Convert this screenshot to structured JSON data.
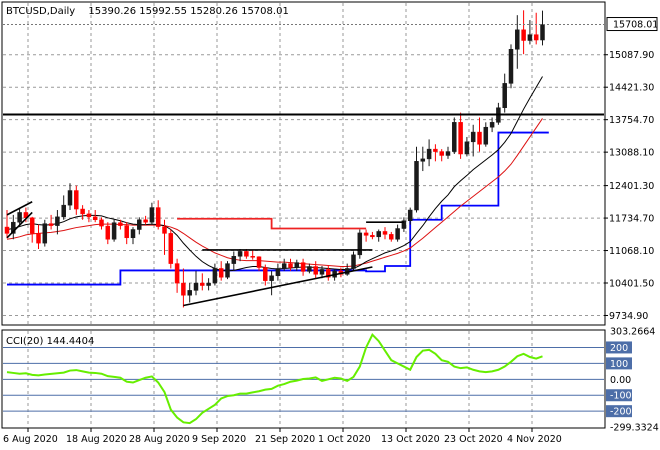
{
  "header": {
    "symbol": "BTCUSD,Daily",
    "ohlc": "15390.26 15992.55 15280.26 15708.01"
  },
  "indicator": {
    "label": "CCI(20) 144.4404",
    "levels": [
      "303.2664",
      "200",
      "100",
      "0.00",
      "-100",
      "-200",
      "-299.3324"
    ]
  },
  "colors": {
    "background": "#ffffff",
    "grid": "#9a9a9a",
    "candle_up": "#1a1a1a",
    "candle_down": "#ff0000",
    "fast_ma": "#000000",
    "slow_ma": "#dd1111",
    "support_line": "#0000ff",
    "resistance_line": "#ee2222",
    "cci_line": "#66ee00",
    "cci_level": "#4d6ea8",
    "price_badge": "#ffffff"
  },
  "chart_data": {
    "type": "candlestick",
    "price_ticks": [
      9734.9,
      10401.5,
      11068.1,
      11734.7,
      12401.3,
      13088.1,
      13754.7,
      14421.3,
      15087.9
    ],
    "current_price": "15708.01",
    "ylim": [
      9560,
      16150
    ],
    "x_labels": [
      "6 Aug 2020",
      "18 Aug 2020",
      "28 Aug 2020",
      "9 Sep 2020",
      "21 Sep 2020",
      "1 Oct 2020",
      "13 Oct 2020",
      "23 Oct 2020",
      "4 Nov 2020"
    ],
    "candles": [
      {
        "o": 11550,
        "h": 11900,
        "l": 11320,
        "c": 11420
      },
      {
        "o": 11420,
        "h": 11800,
        "l": 11300,
        "c": 11650
      },
      {
        "o": 11650,
        "h": 11950,
        "l": 11550,
        "c": 11850
      },
      {
        "o": 11850,
        "h": 11950,
        "l": 11650,
        "c": 11740
      },
      {
        "o": 11740,
        "h": 11760,
        "l": 11230,
        "c": 11420
      },
      {
        "o": 11420,
        "h": 11600,
        "l": 11100,
        "c": 11220
      },
      {
        "o": 11220,
        "h": 11700,
        "l": 11150,
        "c": 11620
      },
      {
        "o": 11620,
        "h": 11800,
        "l": 11500,
        "c": 11580
      },
      {
        "o": 11580,
        "h": 11900,
        "l": 11400,
        "c": 11760
      },
      {
        "o": 11760,
        "h": 12200,
        "l": 11700,
        "c": 12000
      },
      {
        "o": 12000,
        "h": 12450,
        "l": 11900,
        "c": 12300
      },
      {
        "o": 12300,
        "h": 12400,
        "l": 11800,
        "c": 11920
      },
      {
        "o": 11920,
        "h": 12000,
        "l": 11700,
        "c": 11820
      },
      {
        "o": 11820,
        "h": 11900,
        "l": 11650,
        "c": 11760
      },
      {
        "o": 11760,
        "h": 11900,
        "l": 11650,
        "c": 11700
      },
      {
        "o": 11700,
        "h": 11750,
        "l": 11500,
        "c": 11570
      },
      {
        "o": 11570,
        "h": 11650,
        "l": 11200,
        "c": 11300
      },
      {
        "o": 11300,
        "h": 11700,
        "l": 11250,
        "c": 11640
      },
      {
        "o": 11640,
        "h": 11700,
        "l": 11500,
        "c": 11580
      },
      {
        "o": 11580,
        "h": 11650,
        "l": 11200,
        "c": 11330
      },
      {
        "o": 11330,
        "h": 11550,
        "l": 11200,
        "c": 11500
      },
      {
        "o": 11500,
        "h": 11750,
        "l": 11400,
        "c": 11700
      },
      {
        "o": 11700,
        "h": 11780,
        "l": 11600,
        "c": 11650
      },
      {
        "o": 11650,
        "h": 12050,
        "l": 11620,
        "c": 11950
      },
      {
        "o": 11950,
        "h": 12100,
        "l": 11500,
        "c": 11560
      },
      {
        "o": 11560,
        "h": 11700,
        "l": 10980,
        "c": 11420
      },
      {
        "o": 11420,
        "h": 11500,
        "l": 10700,
        "c": 10800
      },
      {
        "o": 10800,
        "h": 10900,
        "l": 10200,
        "c": 10400
      },
      {
        "o": 10400,
        "h": 10700,
        "l": 9900,
        "c": 10150
      },
      {
        "o": 10150,
        "h": 10400,
        "l": 10000,
        "c": 10250
      },
      {
        "o": 10250,
        "h": 10650,
        "l": 10150,
        "c": 10400
      },
      {
        "o": 10400,
        "h": 10600,
        "l": 10250,
        "c": 10350
      },
      {
        "o": 10350,
        "h": 10500,
        "l": 10250,
        "c": 10400
      },
      {
        "o": 10400,
        "h": 10800,
        "l": 10350,
        "c": 10700
      },
      {
        "o": 10700,
        "h": 10850,
        "l": 10450,
        "c": 10520
      },
      {
        "o": 10520,
        "h": 10850,
        "l": 10480,
        "c": 10800
      },
      {
        "o": 10800,
        "h": 11050,
        "l": 10650,
        "c": 10950
      },
      {
        "o": 10950,
        "h": 11100,
        "l": 10850,
        "c": 11050
      },
      {
        "o": 11050,
        "h": 11100,
        "l": 10900,
        "c": 10950
      },
      {
        "o": 10950,
        "h": 11080,
        "l": 10880,
        "c": 10940
      },
      {
        "o": 10940,
        "h": 10950,
        "l": 10650,
        "c": 10720
      },
      {
        "o": 10720,
        "h": 10780,
        "l": 10350,
        "c": 10450
      },
      {
        "o": 10450,
        "h": 10650,
        "l": 10150,
        "c": 10550
      },
      {
        "o": 10550,
        "h": 10800,
        "l": 10450,
        "c": 10700
      },
      {
        "o": 10700,
        "h": 10900,
        "l": 10650,
        "c": 10800
      },
      {
        "o": 10800,
        "h": 10900,
        "l": 10650,
        "c": 10720
      },
      {
        "o": 10720,
        "h": 10880,
        "l": 10650,
        "c": 10820
      },
      {
        "o": 10820,
        "h": 10900,
        "l": 10550,
        "c": 10640
      },
      {
        "o": 10640,
        "h": 10800,
        "l": 10600,
        "c": 10740
      },
      {
        "o": 10740,
        "h": 10850,
        "l": 10500,
        "c": 10580
      },
      {
        "o": 10580,
        "h": 10750,
        "l": 10500,
        "c": 10680
      },
      {
        "o": 10680,
        "h": 10750,
        "l": 10450,
        "c": 10520
      },
      {
        "o": 10520,
        "h": 10700,
        "l": 10450,
        "c": 10650
      },
      {
        "o": 10650,
        "h": 10720,
        "l": 10520,
        "c": 10580
      },
      {
        "o": 10580,
        "h": 10800,
        "l": 10550,
        "c": 10700
      },
      {
        "o": 10700,
        "h": 11050,
        "l": 10650,
        "c": 10980
      },
      {
        "o": 10980,
        "h": 11500,
        "l": 10900,
        "c": 11430
      },
      {
        "o": 11430,
        "h": 11500,
        "l": 11250,
        "c": 11380
      },
      {
        "o": 11380,
        "h": 11450,
        "l": 11300,
        "c": 11350
      },
      {
        "o": 11350,
        "h": 11500,
        "l": 11250,
        "c": 11460
      },
      {
        "o": 11460,
        "h": 11550,
        "l": 11300,
        "c": 11400
      },
      {
        "o": 11400,
        "h": 11450,
        "l": 11250,
        "c": 11300
      },
      {
        "o": 11300,
        "h": 11600,
        "l": 11250,
        "c": 11520
      },
      {
        "o": 11520,
        "h": 11750,
        "l": 11450,
        "c": 11680
      },
      {
        "o": 11680,
        "h": 11950,
        "l": 11600,
        "c": 11900
      },
      {
        "o": 11900,
        "h": 13200,
        "l": 11850,
        "c": 12900
      },
      {
        "o": 12900,
        "h": 13200,
        "l": 12700,
        "c": 12950
      },
      {
        "o": 12950,
        "h": 13350,
        "l": 12800,
        "c": 13150
      },
      {
        "o": 13150,
        "h": 13250,
        "l": 12900,
        "c": 13100
      },
      {
        "o": 13100,
        "h": 13150,
        "l": 12900,
        "c": 13020
      },
      {
        "o": 13020,
        "h": 13200,
        "l": 12950,
        "c": 13100
      },
      {
        "o": 13100,
        "h": 13800,
        "l": 13050,
        "c": 13700
      },
      {
        "o": 13700,
        "h": 13900,
        "l": 12950,
        "c": 13050
      },
      {
        "o": 13050,
        "h": 13400,
        "l": 13000,
        "c": 13300
      },
      {
        "o": 13300,
        "h": 13650,
        "l": 13000,
        "c": 13500
      },
      {
        "o": 13500,
        "h": 13800,
        "l": 13100,
        "c": 13250
      },
      {
        "o": 13250,
        "h": 13700,
        "l": 13200,
        "c": 13600
      },
      {
        "o": 13600,
        "h": 13800,
        "l": 13500,
        "c": 13700
      },
      {
        "o": 13700,
        "h": 14100,
        "l": 13650,
        "c": 14000
      },
      {
        "o": 14000,
        "h": 14700,
        "l": 13900,
        "c": 14500
      },
      {
        "o": 14500,
        "h": 15300,
        "l": 14400,
        "c": 15200
      },
      {
        "o": 15200,
        "h": 15900,
        "l": 14800,
        "c": 15600
      },
      {
        "o": 15600,
        "h": 16000,
        "l": 15100,
        "c": 15380
      },
      {
        "o": 15380,
        "h": 15800,
        "l": 15300,
        "c": 15500
      },
      {
        "o": 15500,
        "h": 15950,
        "l": 15300,
        "c": 15390
      },
      {
        "o": 15390,
        "h": 15992.55,
        "l": 15280.26,
        "c": 15708.01
      }
    ],
    "fast_ma": [
      11500,
      11520,
      11560,
      11600,
      11620,
      11600,
      11590,
      11600,
      11620,
      11660,
      11720,
      11760,
      11780,
      11790,
      11790,
      11780,
      11740,
      11710,
      11680,
      11640,
      11610,
      11600,
      11600,
      11610,
      11600,
      11580,
      11500,
      11380,
      11220,
      11080,
      10950,
      10840,
      10760,
      10700,
      10660,
      10650,
      10660,
      10690,
      10720,
      10740,
      10740,
      10720,
      10700,
      10690,
      10700,
      10710,
      10720,
      10730,
      10730,
      10720,
      10710,
      10700,
      10690,
      10680,
      10680,
      10700,
      10760,
      10840,
      10900,
      10960,
      11020,
      11060,
      11110,
      11170,
      11250,
      11420,
      11580,
      11760,
      11930,
      12080,
      12210,
      12380,
      12500,
      12610,
      12730,
      12830,
      12930,
      13030,
      13140,
      13290,
      13470,
      13720,
      13970,
      14200,
      14420,
      14640
    ],
    "slow_ma": [
      11300,
      11320,
      11350,
      11390,
      11410,
      11420,
      11430,
      11440,
      11460,
      11480,
      11510,
      11540,
      11560,
      11580,
      11600,
      11610,
      11610,
      11610,
      11600,
      11600,
      11590,
      11590,
      11590,
      11590,
      11590,
      11580,
      11550,
      11500,
      11420,
      11330,
      11240,
      11160,
      11090,
      11020,
      10970,
      10920,
      10890,
      10870,
      10860,
      10860,
      10860,
      10850,
      10840,
      10830,
      10830,
      10820,
      10810,
      10800,
      10790,
      10780,
      10770,
      10760,
      10750,
      10740,
      10740,
      10750,
      10780,
      10810,
      10850,
      10890,
      10930,
      10970,
      11010,
      11060,
      11120,
      11220,
      11320,
      11430,
      11540,
      11650,
      11760,
      11870,
      11980,
      12080,
      12180,
      12280,
      12380,
      12480,
      12580,
      12700,
      12840,
      13020,
      13210,
      13400,
      13590,
      13780
    ],
    "support_steps": [
      {
        "from": 0,
        "to": 18,
        "price": 10370
      },
      {
        "from": 18,
        "to": 57,
        "price": 10660
      },
      {
        "from": 57,
        "to": 60,
        "price": 10640
      },
      {
        "from": 60,
        "to": 64,
        "price": 10750
      },
      {
        "from": 64,
        "to": 66,
        "price": 11700
      },
      {
        "from": 66,
        "to": 69,
        "price": 11700
      },
      {
        "from": 69,
        "to": 78,
        "price": 11990
      },
      {
        "from": 78,
        "to": 81,
        "price": 13490
      },
      {
        "from": 81,
        "to": 86,
        "price": 13490
      }
    ],
    "resistance_steps": [
      {
        "from": 27,
        "to": 42,
        "price": 11720
      },
      {
        "from": 42,
        "to": 57,
        "price": 11520
      }
    ],
    "horizontal_lines": [
      {
        "price": 13860,
        "color": "#000000",
        "width": 2
      }
    ],
    "trend_lines": [
      {
        "x1": 0,
        "y1": 11330,
        "x2": 4,
        "y2": 11850
      },
      {
        "x1": 0,
        "y1": 11800,
        "x2": 4,
        "y2": 12070
      },
      {
        "x1": 28,
        "y1": 9940,
        "x2": 58,
        "y2": 10730
      },
      {
        "x1": 31,
        "y1": 11080,
        "x2": 58,
        "y2": 11080
      },
      {
        "x1": 57,
        "y1": 11650,
        "x2": 63,
        "y2": 11650
      }
    ],
    "cci": [
      45,
      40,
      35,
      38,
      28,
      25,
      30,
      34,
      38,
      42,
      55,
      58,
      50,
      42,
      40,
      35,
      20,
      15,
      10,
      -15,
      -20,
      -5,
      10,
      18,
      -20,
      -80,
      -190,
      -240,
      -270,
      -275,
      -250,
      -210,
      -185,
      -160,
      -120,
      -105,
      -100,
      -90,
      -90,
      -82,
      -75,
      -65,
      -60,
      -40,
      -30,
      -15,
      -8,
      2,
      5,
      12,
      -10,
      0,
      10,
      5,
      -10,
      15,
      80,
      200,
      280,
      240,
      180,
      120,
      100,
      80,
      60,
      140,
      180,
      185,
      160,
      120,
      110,
      80,
      70,
      75,
      60,
      50,
      45,
      50,
      60,
      80,
      110,
      145,
      160,
      140,
      130,
      144.4404
    ],
    "cci_range": [
      -299.3324,
      303.2664
    ],
    "cci_ticks": [
      200,
      100,
      0,
      -100,
      -200
    ]
  }
}
